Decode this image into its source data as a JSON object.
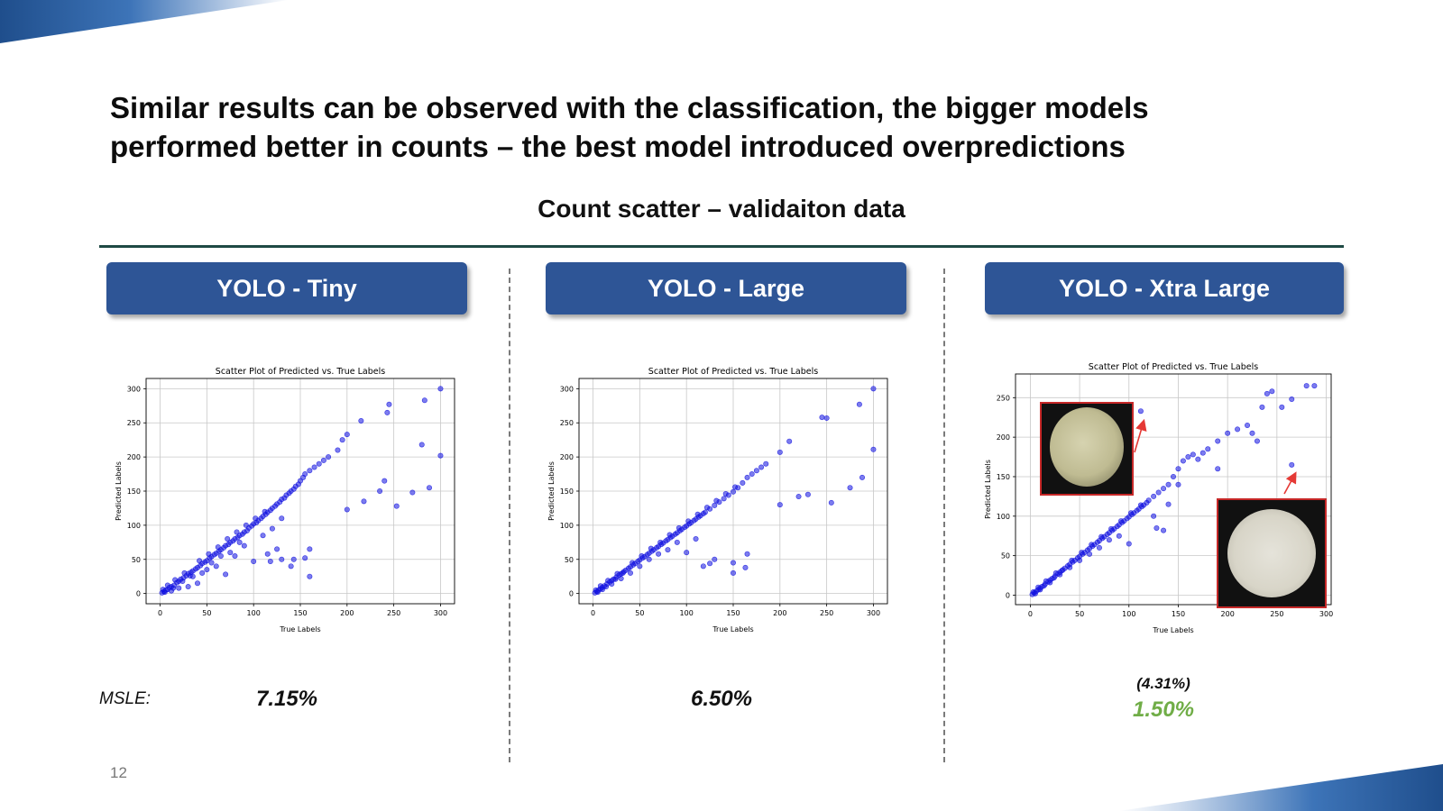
{
  "slide": {
    "title_line1": "Similar results can be observed with the classification, the bigger models",
    "title_line2": "performed better in counts – the best model introduced overpredictions",
    "subtitle": "Count scatter – validaiton data",
    "page_number": "12",
    "msle_label": "MSLE:",
    "accent_color": "#2e5596",
    "highlight_color": "#70ad47"
  },
  "models": [
    {
      "label": "YOLO - Tiny",
      "metric": "7.15%",
      "metric_sub": ""
    },
    {
      "label": "YOLO - Large",
      "metric": "6.50%",
      "metric_sub": ""
    },
    {
      "label": "YOLO - Xtra Large",
      "metric": "1.50%",
      "metric_sub": "(4.31%)"
    }
  ],
  "chart_data": [
    {
      "type": "scatter",
      "title": "Scatter Plot of Predicted vs. True Labels",
      "xlabel": "True Labels",
      "ylabel": "Predicted Labels",
      "xlim": [
        -15,
        315
      ],
      "ylim": [
        -15,
        315
      ],
      "xticks": [
        0,
        50,
        100,
        150,
        200,
        250,
        300
      ],
      "yticks": [
        0,
        50,
        100,
        150,
        200,
        250,
        300
      ],
      "grid": true,
      "color": "#1010e0",
      "points": [
        [
          2,
          1
        ],
        [
          4,
          3
        ],
        [
          6,
          5
        ],
        [
          8,
          6
        ],
        [
          10,
          9
        ],
        [
          12,
          10
        ],
        [
          15,
          12
        ],
        [
          18,
          16
        ],
        [
          20,
          18
        ],
        [
          22,
          21
        ],
        [
          25,
          23
        ],
        [
          28,
          26
        ],
        [
          30,
          29
        ],
        [
          33,
          31
        ],
        [
          35,
          33
        ],
        [
          38,
          36
        ],
        [
          40,
          38
        ],
        [
          43,
          41
        ],
        [
          45,
          44
        ],
        [
          48,
          46
        ],
        [
          50,
          48
        ],
        [
          53,
          52
        ],
        [
          55,
          54
        ],
        [
          58,
          57
        ],
        [
          60,
          59
        ],
        [
          63,
          62
        ],
        [
          65,
          64
        ],
        [
          68,
          67
        ],
        [
          70,
          70
        ],
        [
          73,
          72
        ],
        [
          75,
          75
        ],
        [
          78,
          77
        ],
        [
          80,
          80
        ],
        [
          83,
          82
        ],
        [
          85,
          85
        ],
        [
          88,
          87
        ],
        [
          90,
          90
        ],
        [
          93,
          92
        ],
        [
          95,
          96
        ],
        [
          98,
          99
        ],
        [
          100,
          102
        ],
        [
          103,
          104
        ],
        [
          105,
          107
        ],
        [
          108,
          110
        ],
        [
          110,
          113
        ],
        [
          113,
          116
        ],
        [
          115,
          119
        ],
        [
          118,
          122
        ],
        [
          120,
          125
        ],
        [
          123,
          128
        ],
        [
          125,
          131
        ],
        [
          128,
          134
        ],
        [
          130,
          138
        ],
        [
          133,
          140
        ],
        [
          135,
          144
        ],
        [
          138,
          147
        ],
        [
          140,
          150
        ],
        [
          143,
          153
        ],
        [
          145,
          157
        ],
        [
          148,
          160
        ],
        [
          150,
          165
        ],
        [
          153,
          170
        ],
        [
          155,
          175
        ],
        [
          160,
          180
        ],
        [
          165,
          185
        ],
        [
          170,
          190
        ],
        [
          175,
          195
        ],
        [
          180,
          200
        ],
        [
          190,
          210
        ],
        [
          195,
          225
        ],
        [
          200,
          233
        ],
        [
          215,
          253
        ],
        [
          245,
          277
        ],
        [
          243,
          265
        ],
        [
          283,
          283
        ],
        [
          300,
          300
        ],
        [
          280,
          218
        ],
        [
          300,
          202
        ],
        [
          288,
          155
        ],
        [
          270,
          148
        ],
        [
          253,
          128
        ],
        [
          235,
          150
        ],
        [
          240,
          165
        ],
        [
          218,
          135
        ],
        [
          200,
          123
        ],
        [
          160,
          65
        ],
        [
          155,
          52
        ],
        [
          160,
          25
        ],
        [
          143,
          50
        ],
        [
          140,
          40
        ],
        [
          130,
          50
        ],
        [
          118,
          47
        ],
        [
          115,
          58
        ],
        [
          100,
          47
        ],
        [
          70,
          28
        ],
        [
          40,
          15
        ],
        [
          30,
          10
        ],
        [
          20,
          8
        ],
        [
          12,
          4
        ],
        [
          50,
          35
        ],
        [
          60,
          40
        ],
        [
          80,
          55
        ],
        [
          90,
          70
        ],
        [
          110,
          85
        ],
        [
          120,
          95
        ],
        [
          125,
          65
        ],
        [
          130,
          110
        ],
        [
          35,
          25
        ],
        [
          45,
          30
        ],
        [
          55,
          45
        ],
        [
          65,
          55
        ],
        [
          75,
          60
        ],
        [
          85,
          75
        ],
        [
          5,
          2
        ],
        [
          3,
          6
        ],
        [
          8,
          12
        ],
        [
          14,
          8
        ],
        [
          16,
          20
        ],
        [
          24,
          18
        ],
        [
          26,
          30
        ],
        [
          32,
          26
        ],
        [
          42,
          48
        ],
        [
          52,
          58
        ],
        [
          62,
          68
        ],
        [
          72,
          80
        ],
        [
          82,
          90
        ],
        [
          92,
          100
        ],
        [
          102,
          110
        ],
        [
          112,
          120
        ]
      ]
    },
    {
      "type": "scatter",
      "title": "Scatter Plot of Predicted vs. True Labels",
      "xlabel": "True Labels",
      "ylabel": "Predicted Labels",
      "xlim": [
        -15,
        315
      ],
      "ylim": [
        -15,
        315
      ],
      "xticks": [
        0,
        50,
        100,
        150,
        200,
        250,
        300
      ],
      "yticks": [
        0,
        50,
        100,
        150,
        200,
        250,
        300
      ],
      "grid": true,
      "color": "#1010e0",
      "points": [
        [
          2,
          1
        ],
        [
          4,
          3
        ],
        [
          6,
          5
        ],
        [
          8,
          7
        ],
        [
          10,
          9
        ],
        [
          12,
          11
        ],
        [
          15,
          14
        ],
        [
          18,
          17
        ],
        [
          20,
          19
        ],
        [
          22,
          21
        ],
        [
          25,
          24
        ],
        [
          28,
          27
        ],
        [
          30,
          29
        ],
        [
          33,
          32
        ],
        [
          35,
          34
        ],
        [
          38,
          37
        ],
        [
          40,
          39
        ],
        [
          43,
          42
        ],
        [
          45,
          44
        ],
        [
          48,
          47
        ],
        [
          50,
          49
        ],
        [
          53,
          52
        ],
        [
          55,
          54
        ],
        [
          58,
          57
        ],
        [
          60,
          59
        ],
        [
          63,
          62
        ],
        [
          65,
          64
        ],
        [
          68,
          67
        ],
        [
          70,
          69
        ],
        [
          73,
          72
        ],
        [
          75,
          74
        ],
        [
          78,
          77
        ],
        [
          80,
          79
        ],
        [
          83,
          82
        ],
        [
          85,
          84
        ],
        [
          88,
          87
        ],
        [
          90,
          89
        ],
        [
          93,
          92
        ],
        [
          95,
          94
        ],
        [
          98,
          97
        ],
        [
          100,
          99
        ],
        [
          103,
          102
        ],
        [
          105,
          104
        ],
        [
          108,
          107
        ],
        [
          110,
          109
        ],
        [
          113,
          112
        ],
        [
          115,
          114
        ],
        [
          118,
          117
        ],
        [
          120,
          119
        ],
        [
          125,
          124
        ],
        [
          130,
          129
        ],
        [
          135,
          134
        ],
        [
          140,
          139
        ],
        [
          145,
          144
        ],
        [
          150,
          149
        ],
        [
          155,
          155
        ],
        [
          160,
          162
        ],
        [
          165,
          170
        ],
        [
          170,
          175
        ],
        [
          175,
          180
        ],
        [
          180,
          185
        ],
        [
          185,
          190
        ],
        [
          200,
          207
        ],
        [
          210,
          223
        ],
        [
          245,
          258
        ],
        [
          250,
          257
        ],
        [
          285,
          277
        ],
        [
          300,
          300
        ],
        [
          300,
          211
        ],
        [
          288,
          170
        ],
        [
          275,
          155
        ],
        [
          255,
          133
        ],
        [
          230,
          145
        ],
        [
          220,
          142
        ],
        [
          200,
          130
        ],
        [
          165,
          58
        ],
        [
          150,
          30
        ],
        [
          163,
          38
        ],
        [
          150,
          45
        ],
        [
          130,
          50
        ],
        [
          125,
          44
        ],
        [
          118,
          40
        ],
        [
          110,
          80
        ],
        [
          100,
          60
        ],
        [
          90,
          75
        ],
        [
          80,
          64
        ],
        [
          70,
          58
        ],
        [
          60,
          50
        ],
        [
          50,
          40
        ],
        [
          40,
          30
        ],
        [
          30,
          22
        ],
        [
          20,
          14
        ],
        [
          10,
          6
        ],
        [
          5,
          2
        ],
        [
          3,
          5
        ],
        [
          8,
          11
        ],
        [
          14,
          10
        ],
        [
          16,
          19
        ],
        [
          24,
          21
        ],
        [
          26,
          29
        ],
        [
          32,
          30
        ],
        [
          42,
          45
        ],
        [
          52,
          55
        ],
        [
          62,
          66
        ],
        [
          72,
          75
        ],
        [
          82,
          86
        ],
        [
          92,
          96
        ],
        [
          102,
          106
        ],
        [
          112,
          116
        ],
        [
          122,
          126
        ],
        [
          132,
          136
        ],
        [
          142,
          146
        ],
        [
          152,
          156
        ]
      ]
    },
    {
      "type": "scatter",
      "title": "Scatter Plot of Predicted vs. True Labels",
      "xlabel": "True Labels",
      "ylabel": "Predicted Labels",
      "xlim": [
        -15,
        305
      ],
      "ylim": [
        -12,
        280
      ],
      "xticks": [
        0,
        50,
        100,
        150,
        200,
        250,
        300
      ],
      "yticks": [
        0,
        50,
        100,
        150,
        200,
        250
      ],
      "grid": true,
      "color": "#1010e0",
      "points": [
        [
          2,
          1
        ],
        [
          4,
          3
        ],
        [
          6,
          5
        ],
        [
          8,
          7
        ],
        [
          10,
          9
        ],
        [
          12,
          11
        ],
        [
          15,
          14
        ],
        [
          18,
          17
        ],
        [
          20,
          19
        ],
        [
          22,
          21
        ],
        [
          25,
          24
        ],
        [
          28,
          27
        ],
        [
          30,
          29
        ],
        [
          33,
          32
        ],
        [
          35,
          34
        ],
        [
          38,
          37
        ],
        [
          40,
          39
        ],
        [
          43,
          42
        ],
        [
          45,
          44
        ],
        [
          48,
          47
        ],
        [
          50,
          49
        ],
        [
          53,
          52
        ],
        [
          55,
          54
        ],
        [
          58,
          57
        ],
        [
          60,
          59
        ],
        [
          63,
          62
        ],
        [
          65,
          64
        ],
        [
          68,
          67
        ],
        [
          70,
          69
        ],
        [
          73,
          72
        ],
        [
          75,
          74
        ],
        [
          78,
          77
        ],
        [
          80,
          79
        ],
        [
          83,
          82
        ],
        [
          85,
          84
        ],
        [
          88,
          87
        ],
        [
          90,
          89
        ],
        [
          93,
          92
        ],
        [
          95,
          94
        ],
        [
          98,
          97
        ],
        [
          100,
          99
        ],
        [
          103,
          102
        ],
        [
          105,
          104
        ],
        [
          108,
          107
        ],
        [
          110,
          109
        ],
        [
          113,
          112
        ],
        [
          115,
          114
        ],
        [
          118,
          117
        ],
        [
          120,
          120
        ],
        [
          125,
          125
        ],
        [
          130,
          130
        ],
        [
          135,
          135
        ],
        [
          140,
          140
        ],
        [
          145,
          150
        ],
        [
          150,
          160
        ],
        [
          155,
          170
        ],
        [
          160,
          175
        ],
        [
          165,
          178
        ],
        [
          170,
          172
        ],
        [
          175,
          180
        ],
        [
          180,
          185
        ],
        [
          190,
          195
        ],
        [
          200,
          205
        ],
        [
          210,
          210
        ],
        [
          220,
          215
        ],
        [
          225,
          205
        ],
        [
          235,
          238
        ],
        [
          240,
          255
        ],
        [
          245,
          258
        ],
        [
          255,
          238
        ],
        [
          265,
          248
        ],
        [
          280,
          265
        ],
        [
          288,
          265
        ],
        [
          112,
          233
        ],
        [
          265,
          165
        ],
        [
          230,
          195
        ],
        [
          190,
          160
        ],
        [
          150,
          140
        ],
        [
          140,
          115
        ],
        [
          135,
          82
        ],
        [
          128,
          85
        ],
        [
          125,
          100
        ],
        [
          100,
          65
        ],
        [
          90,
          75
        ],
        [
          80,
          70
        ],
        [
          70,
          60
        ],
        [
          60,
          52
        ],
        [
          50,
          44
        ],
        [
          40,
          35
        ],
        [
          30,
          26
        ],
        [
          20,
          16
        ],
        [
          10,
          7
        ],
        [
          5,
          2
        ],
        [
          3,
          4
        ],
        [
          8,
          10
        ],
        [
          14,
          12
        ],
        [
          16,
          18
        ],
        [
          24,
          22
        ],
        [
          26,
          28
        ],
        [
          32,
          31
        ],
        [
          42,
          44
        ],
        [
          52,
          54
        ],
        [
          62,
          64
        ],
        [
          72,
          74
        ],
        [
          82,
          84
        ],
        [
          92,
          94
        ],
        [
          102,
          104
        ],
        [
          112,
          114
        ]
      ]
    }
  ]
}
